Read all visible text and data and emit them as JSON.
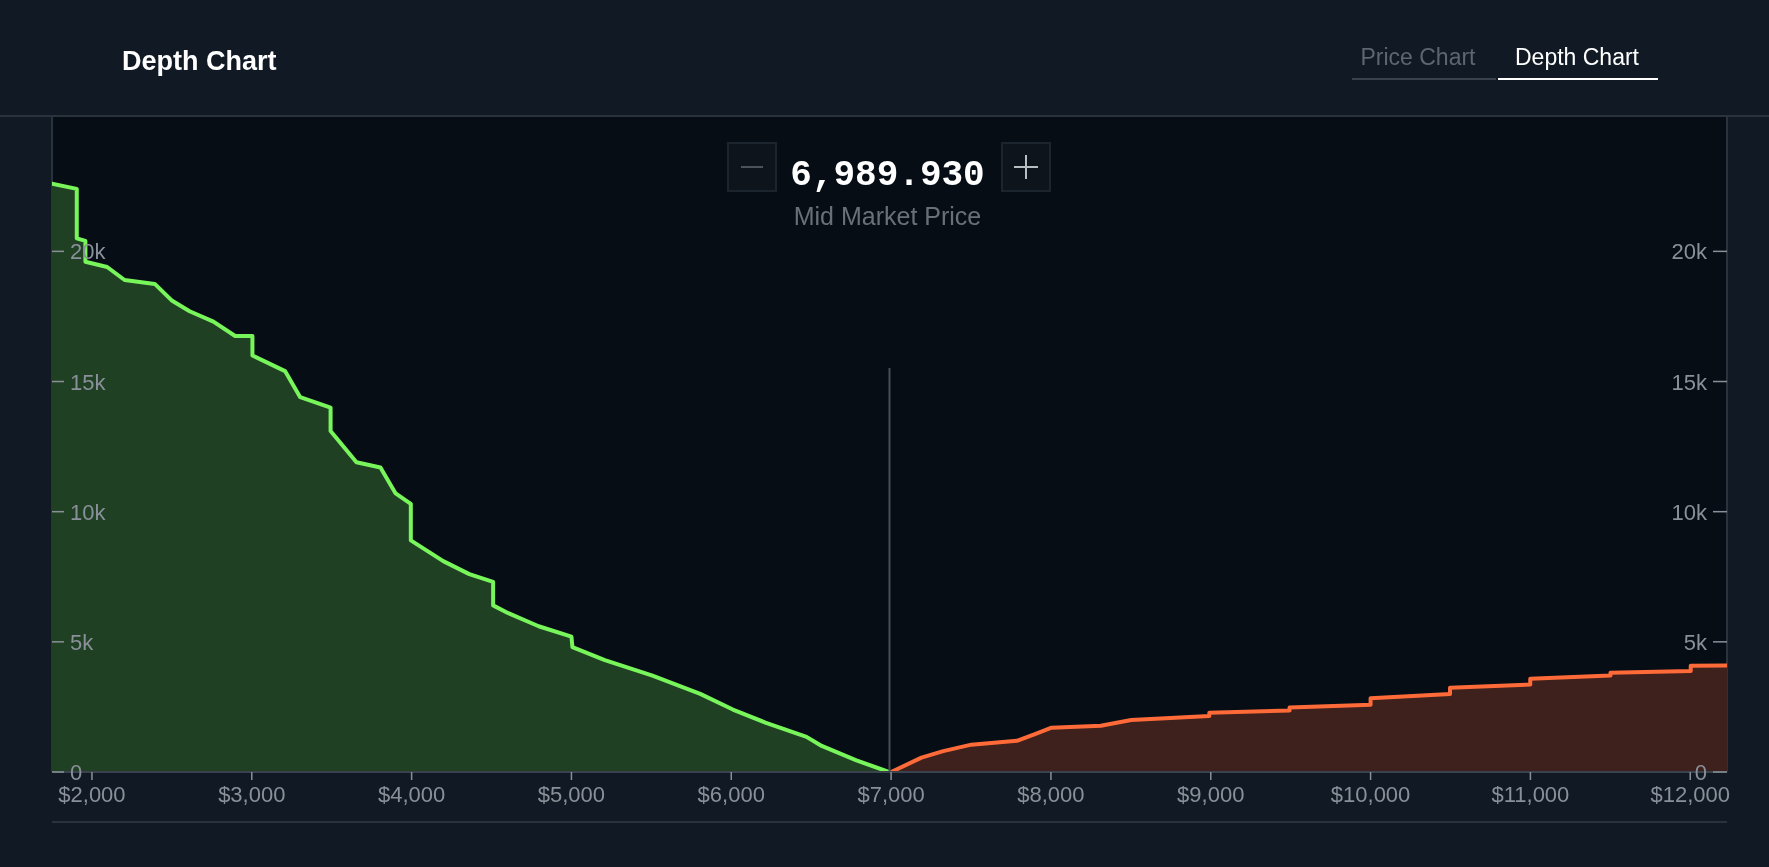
{
  "chart_data": {
    "type": "area",
    "title": "Depth Chart",
    "annotations": [
      "Price Chart",
      "Depth Chart",
      "6,989.930",
      "Mid Market Price"
    ],
    "xlim": [
      1750,
      12230
    ],
    "xticks": [
      {
        "value": 2000,
        "label": "$2,000"
      },
      {
        "value": 3000,
        "label": "$3,000"
      },
      {
        "value": 4000,
        "label": "$4,000"
      },
      {
        "value": 5000,
        "label": "$5,000"
      },
      {
        "value": 6000,
        "label": "$6,000"
      },
      {
        "value": 7000,
        "label": "$7,000"
      },
      {
        "value": 8000,
        "label": "$8,000"
      },
      {
        "value": 9000,
        "label": "$9,000"
      },
      {
        "value": 10000,
        "label": "$10,000"
      },
      {
        "value": 11000,
        "label": "$11,000"
      },
      {
        "value": 12000,
        "label": "$12,000"
      }
    ],
    "ylim": [
      0,
      25200
    ],
    "yticks": [
      0,
      {
        "value": 5000,
        "label": "5k"
      },
      {
        "value": 10000,
        "label": "10k"
      },
      {
        "value": 15000,
        "label": "15k"
      },
      {
        "value": 20000,
        "label": "20k"
      }
    ],
    "y2lim": [
      0,
      25200
    ],
    "y2ticks": [
      0,
      {
        "value": 5000,
        "label": "5k"
      },
      {
        "value": 10000,
        "label": "10k"
      },
      {
        "value": 15000,
        "label": "15k"
      },
      {
        "value": 20000,
        "label": "20k"
      }
    ],
    "ref_lines": [
      {
        "axis": "x",
        "value": 6989.93,
        "color": "#4a4f57"
      }
    ],
    "series": [
      {
        "color": "#77f55a",
        "x": [
          1750,
          1905,
          1905,
          1959,
          1959,
          2095,
          2204,
          2393,
          2502,
          2611,
          2760,
          2896,
          3004,
          3004,
          3208,
          3303,
          3493,
          3493,
          3655,
          3805,
          3900,
          3995,
          3995,
          4198,
          4361,
          4510,
          4510,
          4605,
          4795,
          5000,
          5006,
          5209,
          5507,
          5806,
          6010,
          6213,
          6471,
          6566,
          6783,
          6986
        ],
        "values": [
          22600,
          22400,
          20500,
          20400,
          19600,
          19400,
          18900,
          18750,
          18100,
          17700,
          17300,
          16750,
          16750,
          16000,
          15400,
          14400,
          14000,
          13100,
          11900,
          11700,
          10700,
          10300,
          8900,
          8100,
          7600,
          7300,
          6400,
          6100,
          5600,
          5200,
          4800,
          4300,
          3700,
          3000,
          2400,
          1900,
          1350,
          1000,
          450,
          0
        ]
      },
      {
        "color": "#ff6a39",
        "x": [
          7000,
          7190,
          7326,
          7502,
          7787,
          7896,
          8004,
          8312,
          8502,
          8991,
          8991,
          9493,
          9493,
          10000,
          10000,
          10497,
          10497,
          10999,
          10999,
          11501,
          11501,
          12003,
          12003,
          12230
        ],
        "values": [
          0,
          550,
          800,
          1050,
          1200,
          1450,
          1700,
          1780,
          2000,
          2150,
          2280,
          2360,
          2480,
          2580,
          2830,
          3000,
          3240,
          3360,
          3580,
          3710,
          3810,
          3880,
          4080,
          4090
        ]
      }
    ]
  }
}
